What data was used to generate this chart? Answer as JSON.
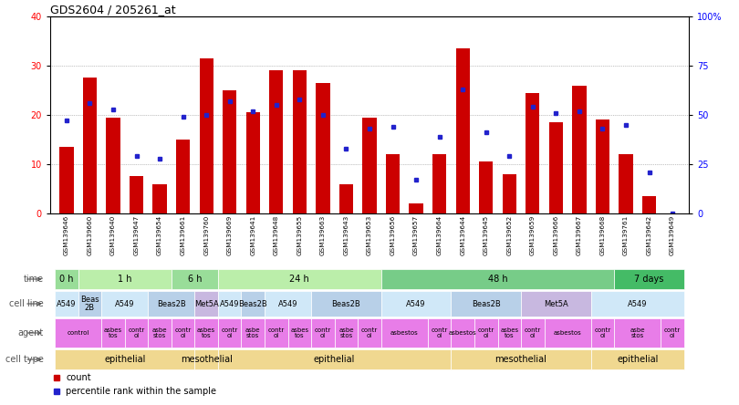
{
  "title": "GDS2604 / 205261_at",
  "samples": [
    "GSM139646",
    "GSM139660",
    "GSM139640",
    "GSM139647",
    "GSM139654",
    "GSM139661",
    "GSM139760",
    "GSM139669",
    "GSM139641",
    "GSM139648",
    "GSM139655",
    "GSM139663",
    "GSM139643",
    "GSM139653",
    "GSM139656",
    "GSM139657",
    "GSM139664",
    "GSM139644",
    "GSM139645",
    "GSM139652",
    "GSM139659",
    "GSM139666",
    "GSM139667",
    "GSM139668",
    "GSM139761",
    "GSM139642",
    "GSM139649"
  ],
  "counts": [
    13.5,
    27.5,
    19.5,
    7.5,
    6.0,
    15.0,
    31.5,
    25.0,
    20.5,
    29.0,
    29.0,
    26.5,
    6.0,
    19.5,
    12.0,
    2.0,
    12.0,
    33.5,
    10.5,
    8.0,
    24.5,
    18.5,
    26.0,
    19.0,
    12.0,
    3.5,
    0.0
  ],
  "percentiles": [
    47,
    56,
    53,
    29,
    28,
    49,
    50,
    57,
    52,
    55,
    58,
    50,
    33,
    43,
    44,
    17,
    39,
    63,
    41,
    29,
    54,
    51,
    52,
    43,
    45,
    21,
    0
  ],
  "bar_color": "#cc0000",
  "dot_color": "#2222cc",
  "time_entries": [
    {
      "label": "0 h",
      "span": [
        0,
        1
      ],
      "color": "#99dd99"
    },
    {
      "label": "1 h",
      "span": [
        1,
        5
      ],
      "color": "#bbeeaa"
    },
    {
      "label": "6 h",
      "span": [
        5,
        7
      ],
      "color": "#99dd99"
    },
    {
      "label": "24 h",
      "span": [
        7,
        14
      ],
      "color": "#bbeeaa"
    },
    {
      "label": "48 h",
      "span": [
        14,
        24
      ],
      "color": "#77cc88"
    },
    {
      "label": "7 days",
      "span": [
        24,
        27
      ],
      "color": "#44bb66"
    }
  ],
  "cell_line_entries": [
    {
      "label": "A549",
      "span": [
        0,
        1
      ],
      "color": "#d0e8f8"
    },
    {
      "label": "Beas\n2B",
      "span": [
        1,
        2
      ],
      "color": "#b8d0e8"
    },
    {
      "label": "A549",
      "span": [
        2,
        4
      ],
      "color": "#d0e8f8"
    },
    {
      "label": "Beas2B",
      "span": [
        4,
        6
      ],
      "color": "#b8d0e8"
    },
    {
      "label": "Met5A",
      "span": [
        6,
        7
      ],
      "color": "#c8b8e0"
    },
    {
      "label": "A549",
      "span": [
        7,
        8
      ],
      "color": "#d0e8f8"
    },
    {
      "label": "Beas2B",
      "span": [
        8,
        9
      ],
      "color": "#b8d0e8"
    },
    {
      "label": "A549",
      "span": [
        9,
        11
      ],
      "color": "#d0e8f8"
    },
    {
      "label": "Beas2B",
      "span": [
        11,
        14
      ],
      "color": "#b8d0e8"
    },
    {
      "label": "A549",
      "span": [
        14,
        17
      ],
      "color": "#d0e8f8"
    },
    {
      "label": "Beas2B",
      "span": [
        17,
        20
      ],
      "color": "#b8d0e8"
    },
    {
      "label": "Met5A",
      "span": [
        20,
        23
      ],
      "color": "#c8b8e0"
    },
    {
      "label": "A549",
      "span": [
        23,
        27
      ],
      "color": "#d0e8f8"
    }
  ],
  "agent_entries": [
    {
      "label": "control",
      "span": [
        0,
        2
      ],
      "color": "#e87de8"
    },
    {
      "label": "asbes\ntos",
      "span": [
        2,
        3
      ],
      "color": "#e87de8"
    },
    {
      "label": "contr\nol",
      "span": [
        3,
        4
      ],
      "color": "#e87de8"
    },
    {
      "label": "asbe\nstos",
      "span": [
        4,
        5
      ],
      "color": "#e87de8"
    },
    {
      "label": "contr\nol",
      "span": [
        5,
        6
      ],
      "color": "#e87de8"
    },
    {
      "label": "asbes\ntos",
      "span": [
        6,
        7
      ],
      "color": "#e87de8"
    },
    {
      "label": "contr\nol",
      "span": [
        7,
        8
      ],
      "color": "#e87de8"
    },
    {
      "label": "asbe\nstos",
      "span": [
        8,
        9
      ],
      "color": "#e87de8"
    },
    {
      "label": "contr\nol",
      "span": [
        9,
        10
      ],
      "color": "#e87de8"
    },
    {
      "label": "asbes\ntos",
      "span": [
        10,
        11
      ],
      "color": "#e87de8"
    },
    {
      "label": "contr\nol",
      "span": [
        11,
        12
      ],
      "color": "#e87de8"
    },
    {
      "label": "asbe\nstos",
      "span": [
        12,
        13
      ],
      "color": "#e87de8"
    },
    {
      "label": "contr\nol",
      "span": [
        13,
        14
      ],
      "color": "#e87de8"
    },
    {
      "label": "asbestos",
      "span": [
        14,
        16
      ],
      "color": "#e87de8"
    },
    {
      "label": "contr\nol",
      "span": [
        16,
        17
      ],
      "color": "#e87de8"
    },
    {
      "label": "asbestos",
      "span": [
        17,
        18
      ],
      "color": "#e87de8"
    },
    {
      "label": "contr\nol",
      "span": [
        18,
        19
      ],
      "color": "#e87de8"
    },
    {
      "label": "asbes\ntos",
      "span": [
        19,
        20
      ],
      "color": "#e87de8"
    },
    {
      "label": "contr\nol",
      "span": [
        20,
        21
      ],
      "color": "#e87de8"
    },
    {
      "label": "asbestos",
      "span": [
        21,
        23
      ],
      "color": "#e87de8"
    },
    {
      "label": "contr\nol",
      "span": [
        23,
        24
      ],
      "color": "#e87de8"
    },
    {
      "label": "asbe\nstos",
      "span": [
        24,
        26
      ],
      "color": "#e87de8"
    },
    {
      "label": "contr\nol",
      "span": [
        26,
        27
      ],
      "color": "#e87de8"
    }
  ],
  "cell_type_entries": [
    {
      "label": "epithelial",
      "span": [
        0,
        6
      ],
      "color": "#f0d890"
    },
    {
      "label": "mesothelial",
      "span": [
        6,
        7
      ],
      "color": "#f0d890"
    },
    {
      "label": "epithelial",
      "span": [
        7,
        17
      ],
      "color": "#f0d890"
    },
    {
      "label": "mesothelial",
      "span": [
        17,
        23
      ],
      "color": "#f0d890"
    },
    {
      "label": "epithelial",
      "span": [
        23,
        27
      ],
      "color": "#f0d890"
    }
  ],
  "row_labels": [
    "time",
    "cell line",
    "agent",
    "cell type"
  ],
  "label_color": "#555555"
}
